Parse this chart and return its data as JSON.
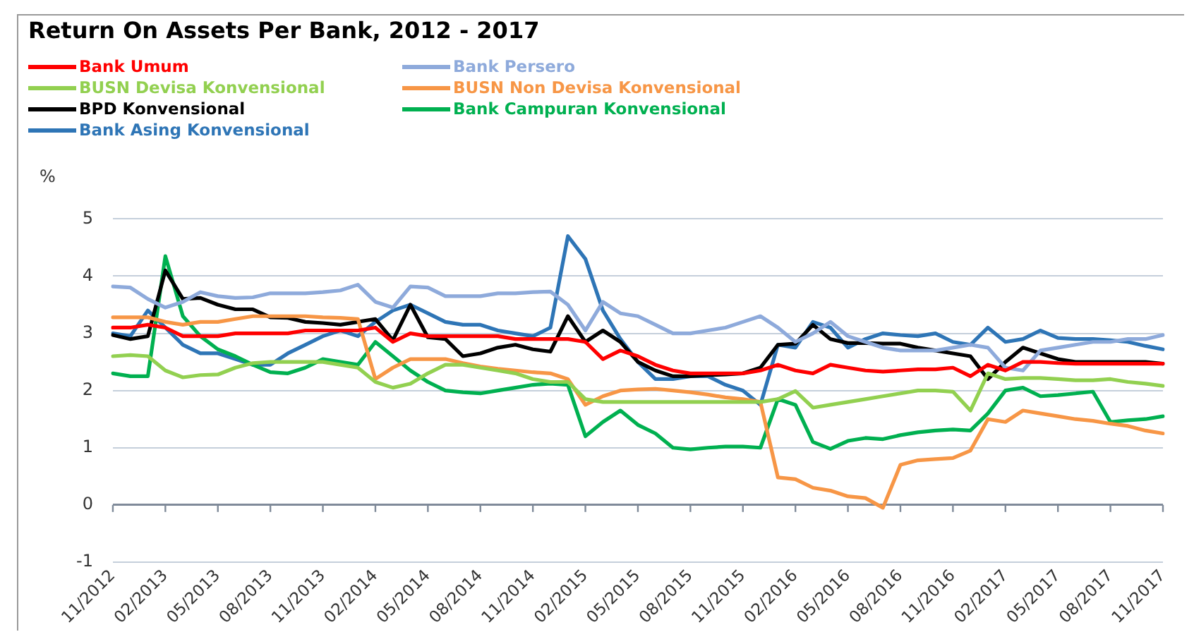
{
  "chart_data": {
    "type": "line",
    "title": "Return On Assets Per Bank, 2012 - 2017",
    "ylabel": "%",
    "categories": [
      "11/2012",
      null,
      null,
      "02/2013",
      null,
      null,
      "05/2013",
      null,
      null,
      "08/2013",
      null,
      null,
      "11/2013",
      null,
      null,
      "02/2014",
      null,
      null,
      "05/2014",
      null,
      null,
      "08/2014",
      null,
      null,
      "11/2014",
      null,
      null,
      "02/2015",
      null,
      null,
      "05/2015",
      null,
      null,
      "08/2015",
      null,
      null,
      "11/2015",
      null,
      null,
      "02/2016",
      null,
      null,
      "05/2016",
      null,
      null,
      "08/2016",
      null,
      null,
      "11/2016",
      null,
      null,
      "02/2017",
      null,
      null,
      "05/2017",
      null,
      null,
      "08/2017",
      null,
      null,
      "11/2017"
    ],
    "series": [
      {
        "name": "Bank Umum",
        "color": "#ff0000",
        "values": [
          3.1,
          3.1,
          3.15,
          3.1,
          2.95,
          2.95,
          2.95,
          3.0,
          3.0,
          3.0,
          3.0,
          3.05,
          3.05,
          3.05,
          3.05,
          3.1,
          2.85,
          3.0,
          2.95,
          2.95,
          2.95,
          2.95,
          2.95,
          2.9,
          2.9,
          2.9,
          2.9,
          2.85,
          2.55,
          2.7,
          2.6,
          2.45,
          2.35,
          2.3,
          2.3,
          2.3,
          2.3,
          2.35,
          2.45,
          2.35,
          2.3,
          2.45,
          2.4,
          2.35,
          2.33,
          2.35,
          2.37,
          2.37,
          2.4,
          2.25,
          2.45,
          2.35,
          2.5,
          2.5,
          2.48,
          2.47,
          2.47,
          2.47,
          2.47,
          2.47,
          2.47
        ]
      },
      {
        "name": "Bank Persero",
        "color": "#8eaadb",
        "values": [
          3.82,
          3.8,
          3.6,
          3.45,
          3.55,
          3.72,
          3.65,
          3.62,
          3.63,
          3.7,
          3.7,
          3.7,
          3.72,
          3.75,
          3.85,
          3.55,
          3.45,
          3.82,
          3.8,
          3.65,
          3.65,
          3.65,
          3.7,
          3.7,
          3.72,
          3.73,
          3.5,
          3.05,
          3.55,
          3.35,
          3.3,
          3.15,
          3.0,
          3.0,
          3.05,
          3.1,
          3.2,
          3.3,
          3.1,
          2.85,
          3.0,
          3.2,
          2.95,
          2.85,
          2.75,
          2.7,
          2.7,
          2.7,
          2.75,
          2.8,
          2.75,
          2.4,
          2.35,
          2.7,
          2.75,
          2.8,
          2.85,
          2.85,
          2.9,
          2.9,
          2.97
        ]
      },
      {
        "name": "BUSN Devisa Konvensional",
        "color": "#92d050",
        "values": [
          2.6,
          2.62,
          2.6,
          2.35,
          2.23,
          2.27,
          2.28,
          2.4,
          2.48,
          2.5,
          2.5,
          2.5,
          2.5,
          2.45,
          2.4,
          2.15,
          2.05,
          2.12,
          2.3,
          2.45,
          2.45,
          2.4,
          2.35,
          2.3,
          2.2,
          2.15,
          2.15,
          1.85,
          1.8,
          1.8,
          1.8,
          1.8,
          1.8,
          1.8,
          1.8,
          1.8,
          1.8,
          1.8,
          1.85,
          1.99,
          1.7,
          1.75,
          1.8,
          1.85,
          1.9,
          1.95,
          2.0,
          2.0,
          1.98,
          1.65,
          2.3,
          2.2,
          2.22,
          2.22,
          2.2,
          2.18,
          2.18,
          2.2,
          2.15,
          2.12,
          2.08
        ]
      },
      {
        "name": "BUSN Non Devisa Konvensional",
        "color": "#f79646",
        "values": [
          3.28,
          3.28,
          3.28,
          3.2,
          3.15,
          3.2,
          3.2,
          3.25,
          3.3,
          3.3,
          3.3,
          3.3,
          3.28,
          3.27,
          3.25,
          2.2,
          2.4,
          2.55,
          2.55,
          2.55,
          2.48,
          2.42,
          2.38,
          2.35,
          2.32,
          2.3,
          2.2,
          1.75,
          1.9,
          2.0,
          2.02,
          2.03,
          2.0,
          1.97,
          1.93,
          1.88,
          1.85,
          1.8,
          0.48,
          0.45,
          0.3,
          0.25,
          0.15,
          0.12,
          -0.05,
          0.7,
          0.78,
          0.8,
          0.82,
          0.95,
          1.5,
          1.45,
          1.65,
          1.6,
          1.55,
          1.5,
          1.47,
          1.42,
          1.38,
          1.3,
          1.25
        ]
      },
      {
        "name": "BPD Konvensional",
        "color": "#000000",
        "values": [
          2.97,
          2.9,
          2.95,
          4.1,
          3.6,
          3.62,
          3.5,
          3.42,
          3.42,
          3.28,
          3.27,
          3.2,
          3.18,
          3.15,
          3.2,
          3.25,
          2.88,
          3.5,
          2.93,
          2.9,
          2.6,
          2.65,
          2.75,
          2.8,
          2.72,
          2.68,
          3.3,
          2.85,
          3.05,
          2.85,
          2.5,
          2.35,
          2.25,
          2.25,
          2.27,
          2.28,
          2.3,
          2.4,
          2.8,
          2.82,
          3.15,
          2.9,
          2.83,
          2.83,
          2.82,
          2.82,
          2.75,
          2.7,
          2.65,
          2.6,
          2.2,
          2.5,
          2.75,
          2.65,
          2.55,
          2.5,
          2.5,
          2.5,
          2.5,
          2.5,
          2.47
        ]
      },
      {
        "name": "Bank Campuran Konvensional",
        "color": "#00b050",
        "values": [
          2.3,
          2.25,
          2.25,
          4.35,
          3.3,
          2.95,
          2.72,
          2.6,
          2.45,
          2.32,
          2.3,
          2.4,
          2.55,
          2.5,
          2.45,
          2.85,
          2.6,
          2.35,
          2.15,
          2.0,
          1.97,
          1.95,
          2.0,
          2.05,
          2.1,
          2.12,
          2.1,
          1.2,
          1.45,
          1.65,
          1.4,
          1.25,
          1.0,
          0.97,
          1.0,
          1.02,
          1.02,
          1.0,
          1.85,
          1.75,
          1.1,
          0.98,
          1.12,
          1.17,
          1.15,
          1.22,
          1.27,
          1.3,
          1.32,
          1.3,
          1.6,
          2.0,
          2.05,
          1.9,
          1.92,
          1.95,
          1.98,
          1.45,
          1.48,
          1.5,
          1.55
        ]
      },
      {
        "name": "Bank Asing Konvensional",
        "color": "#2e75b6",
        "values": [
          3.0,
          2.95,
          3.4,
          3.1,
          2.8,
          2.65,
          2.65,
          2.55,
          2.45,
          2.45,
          2.65,
          2.8,
          2.95,
          3.05,
          2.95,
          3.2,
          3.4,
          3.5,
          3.35,
          3.2,
          3.15,
          3.15,
          3.05,
          3.0,
          2.95,
          3.1,
          4.7,
          4.3,
          3.4,
          2.9,
          2.5,
          2.2,
          2.2,
          2.25,
          2.25,
          2.1,
          2.0,
          1.75,
          2.8,
          2.75,
          3.2,
          3.1,
          2.75,
          2.9,
          3.0,
          2.97,
          2.95,
          3.0,
          2.85,
          2.8,
          3.1,
          2.85,
          2.9,
          3.05,
          2.92,
          2.9,
          2.9,
          2.88,
          2.85,
          2.78,
          2.72
        ]
      }
    ],
    "ylim": [
      -1,
      5
    ],
    "yticks": [
      -1,
      0,
      1,
      2,
      3,
      4,
      5
    ],
    "grid": "y",
    "legend": "top left",
    "marker": "none",
    "line_style": "solid"
  }
}
